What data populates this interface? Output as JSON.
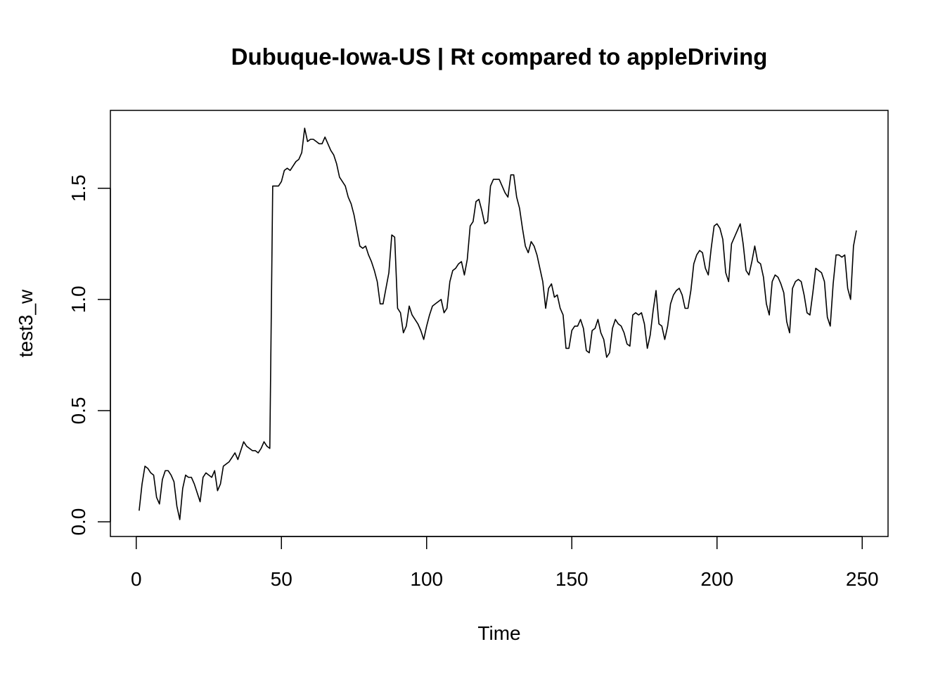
{
  "chart_data": {
    "type": "line",
    "title": "Dubuque-Iowa-US | Rt compared to appleDriving",
    "xlabel": "Time",
    "ylabel": "test3_w",
    "xlim": [
      -8.9,
      258.9
    ],
    "ylim": [
      -0.066,
      1.85
    ],
    "x_ticks": [
      0,
      50,
      100,
      150,
      200,
      250
    ],
    "y_ticks": [
      0.0,
      0.5,
      1.0,
      1.5
    ],
    "x_tick_labels": [
      "0",
      "50",
      "100",
      "150",
      "200",
      "250"
    ],
    "y_tick_labels": [
      "0.0",
      "0.5",
      "1.0",
      "1.5"
    ],
    "grid": false,
    "legend": "none",
    "line_color": "#000000",
    "series": [
      {
        "x_start": 1,
        "values": [
          0.05,
          0.17,
          0.25,
          0.24,
          0.22,
          0.21,
          0.11,
          0.08,
          0.19,
          0.23,
          0.23,
          0.21,
          0.18,
          0.07,
          0.01,
          0.15,
          0.21,
          0.2,
          0.2,
          0.17,
          0.13,
          0.09,
          0.2,
          0.22,
          0.21,
          0.2,
          0.23,
          0.14,
          0.17,
          0.25,
          0.26,
          0.27,
          0.29,
          0.31,
          0.28,
          0.32,
          0.36,
          0.34,
          0.33,
          0.32,
          0.32,
          0.31,
          0.33,
          0.36,
          0.34,
          0.33,
          1.51,
          1.51,
          1.51,
          1.53,
          1.58,
          1.59,
          1.58,
          1.6,
          1.62,
          1.63,
          1.66,
          1.77,
          1.71,
          1.72,
          1.72,
          1.71,
          1.7,
          1.7,
          1.73,
          1.7,
          1.67,
          1.65,
          1.61,
          1.55,
          1.53,
          1.51,
          1.46,
          1.43,
          1.38,
          1.31,
          1.24,
          1.23,
          1.24,
          1.2,
          1.17,
          1.13,
          1.08,
          0.98,
          0.98,
          1.05,
          1.12,
          1.29,
          1.28,
          0.96,
          0.94,
          0.85,
          0.88,
          0.97,
          0.93,
          0.91,
          0.89,
          0.86,
          0.82,
          0.88,
          0.93,
          0.97,
          0.98,
          0.99,
          1.0,
          0.94,
          0.96,
          1.08,
          1.13,
          1.14,
          1.16,
          1.17,
          1.11,
          1.18,
          1.33,
          1.35,
          1.44,
          1.45,
          1.4,
          1.34,
          1.35,
          1.51,
          1.54,
          1.54,
          1.54,
          1.51,
          1.48,
          1.46,
          1.56,
          1.56,
          1.46,
          1.41,
          1.32,
          1.24,
          1.21,
          1.26,
          1.24,
          1.2,
          1.14,
          1.08,
          0.96,
          1.05,
          1.07,
          1.01,
          1.02,
          0.96,
          0.93,
          0.78,
          0.78,
          0.86,
          0.88,
          0.88,
          0.91,
          0.87,
          0.77,
          0.76,
          0.86,
          0.87,
          0.91,
          0.85,
          0.82,
          0.74,
          0.76,
          0.87,
          0.91,
          0.89,
          0.88,
          0.85,
          0.8,
          0.79,
          0.93,
          0.94,
          0.93,
          0.94,
          0.89,
          0.78,
          0.84,
          0.95,
          1.04,
          0.89,
          0.88,
          0.82,
          0.88,
          0.98,
          1.02,
          1.04,
          1.05,
          1.02,
          0.96,
          0.96,
          1.04,
          1.16,
          1.2,
          1.22,
          1.21,
          1.14,
          1.11,
          1.23,
          1.33,
          1.34,
          1.32,
          1.27,
          1.12,
          1.08,
          1.25,
          1.28,
          1.31,
          1.34,
          1.25,
          1.13,
          1.11,
          1.17,
          1.24,
          1.17,
          1.16,
          1.1,
          0.98,
          0.93,
          1.08,
          1.11,
          1.1,
          1.07,
          1.03,
          0.9,
          0.85,
          1.05,
          1.08,
          1.09,
          1.08,
          1.02,
          0.94,
          0.93,
          1.03,
          1.14,
          1.13,
          1.12,
          1.08,
          0.92,
          0.88,
          1.07,
          1.2,
          1.2,
          1.19,
          1.2,
          1.05,
          1.0,
          1.24,
          1.31
        ]
      }
    ]
  }
}
